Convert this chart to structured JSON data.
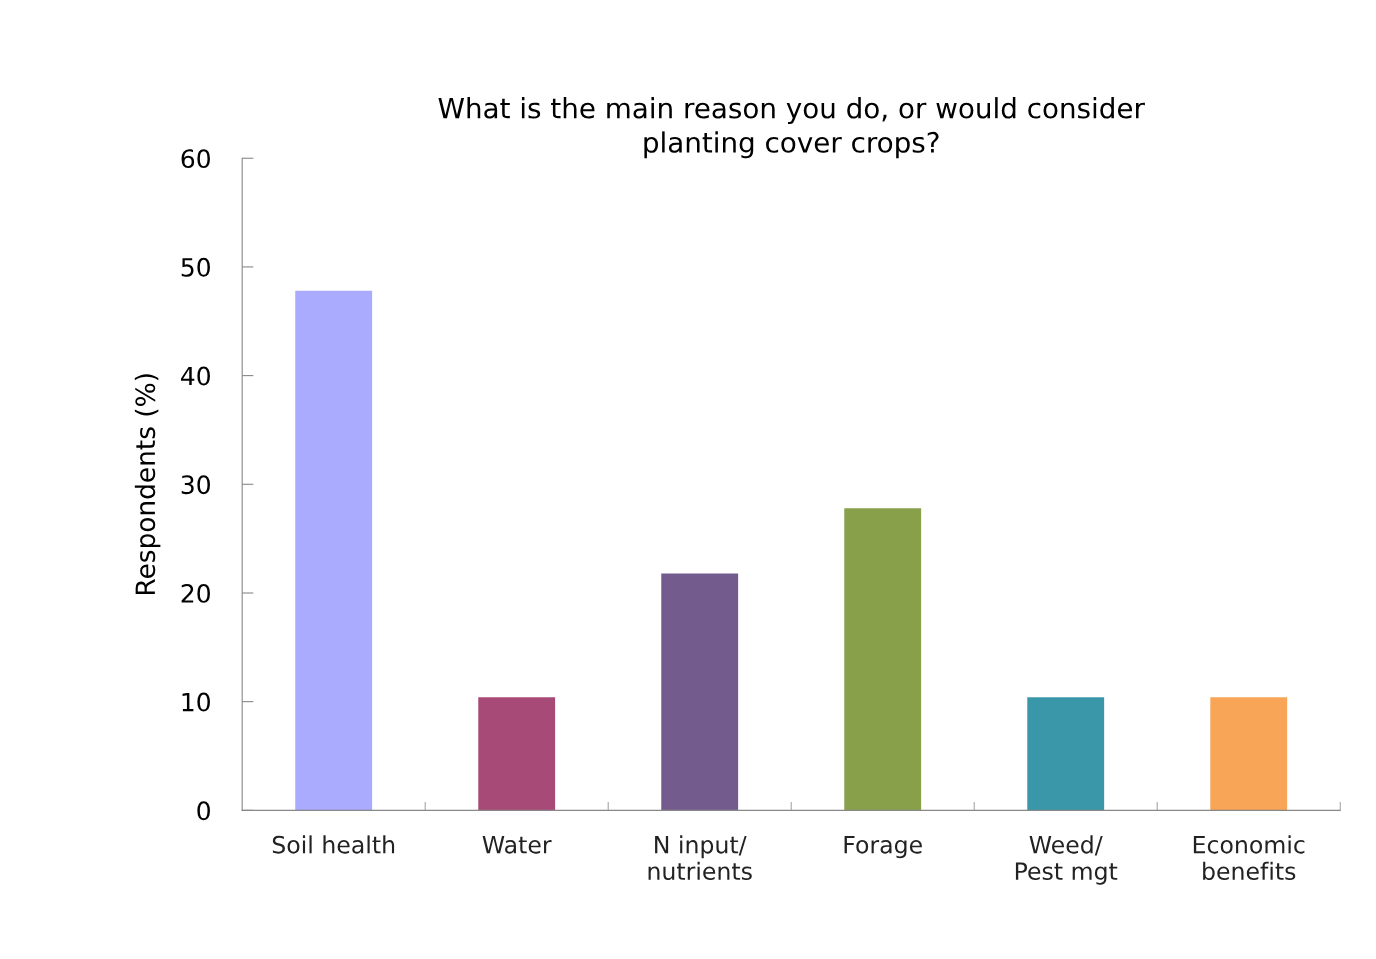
{
  "chart_data": {
    "type": "bar",
    "title": "What is the main reason you do, or would consider\nplanting cover crops?",
    "ylabel": "Respondents (%)",
    "categories": [
      "Soil health",
      "Water",
      "N input/\nnutrients",
      "Forage",
      "Weed/\nPest mgt",
      "Economic\nbenefits"
    ],
    "values": [
      47.8,
      10.4,
      21.8,
      27.8,
      10.4,
      10.4
    ],
    "colors": [
      "#aaaaff",
      "#a84a78",
      "#735b8d",
      "#88a04a",
      "#3a97aa",
      "#f9a557"
    ],
    "ylim": [
      0,
      60
    ],
    "yticks": [
      0,
      10,
      20,
      30,
      40,
      50,
      60
    ],
    "grid": false
  }
}
